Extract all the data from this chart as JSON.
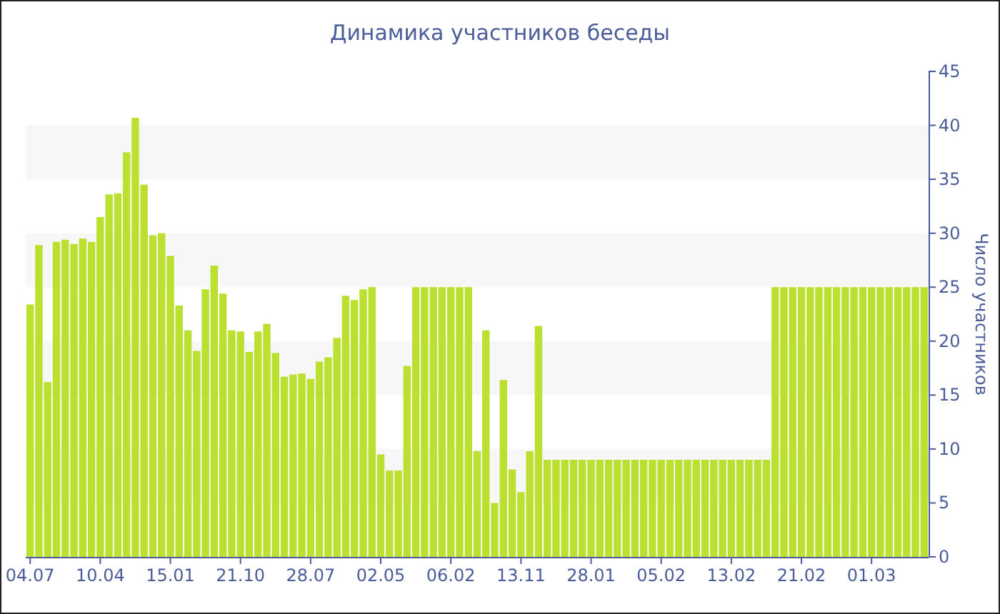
{
  "chart_data": {
    "type": "bar",
    "title": "Динамика участников беседы",
    "ylabel": "Число участников",
    "categories": [
      "04.07",
      null,
      null,
      null,
      null,
      null,
      null,
      null,
      "10.04",
      null,
      null,
      null,
      null,
      null,
      null,
      null,
      "15.01",
      null,
      null,
      null,
      null,
      null,
      null,
      null,
      "21.10",
      null,
      null,
      null,
      null,
      null,
      null,
      null,
      "28.07",
      null,
      null,
      null,
      null,
      null,
      null,
      null,
      "02.05",
      null,
      null,
      null,
      null,
      null,
      null,
      null,
      "06.02",
      null,
      null,
      null,
      null,
      null,
      null,
      null,
      "13.11",
      null,
      null,
      null,
      null,
      null,
      null,
      null,
      "28.01",
      null,
      null,
      null,
      null,
      null,
      null,
      null,
      "05.02",
      null,
      null,
      null,
      null,
      null,
      null,
      null,
      "13.02",
      null,
      null,
      null,
      null,
      null,
      null,
      null,
      "21.02",
      null,
      null,
      null,
      null,
      null,
      null,
      null,
      "01.03",
      null,
      null,
      null,
      null,
      null,
      null
    ],
    "values": [
      23.4,
      28.9,
      16.2,
      29.2,
      29.4,
      29.0,
      29.5,
      29.2,
      31.5,
      33.6,
      33.7,
      37.5,
      40.7,
      34.5,
      29.8,
      30.0,
      27.9,
      23.3,
      21.0,
      19.1,
      24.8,
      27.0,
      24.4,
      21.0,
      20.9,
      19.0,
      20.9,
      21.6,
      18.9,
      16.7,
      16.9,
      17.0,
      16.5,
      18.1,
      18.5,
      20.3,
      24.2,
      23.8,
      24.8,
      25,
      9.5,
      8,
      8,
      17.7,
      25,
      25,
      25,
      25,
      25,
      25,
      25,
      9.8,
      21,
      5,
      16.4,
      8.1,
      6,
      9.8,
      21.4,
      9,
      9,
      9,
      9,
      9,
      9,
      9,
      9,
      9,
      9,
      9,
      9,
      9,
      9,
      9,
      9,
      9,
      9,
      9,
      9,
      9,
      9,
      9,
      9,
      9,
      9,
      25,
      25,
      25,
      25,
      25,
      25,
      25,
      25,
      25,
      25,
      25,
      25,
      25,
      25,
      25,
      25,
      25,
      25
    ],
    "color": "#bbe02f",
    "ylim": [
      0,
      45
    ],
    "yticks": [
      0,
      5,
      10,
      15,
      20,
      25,
      30,
      35,
      40,
      45
    ],
    "bands": [
      {
        "axis": "y",
        "from": 5,
        "to": 10,
        "color": "#f7f7f7"
      },
      {
        "axis": "y",
        "from": 15,
        "to": 20,
        "color": "#f7f7f7"
      },
      {
        "axis": "y",
        "from": 25,
        "to": 30,
        "color": "#f7f7f7"
      },
      {
        "axis": "y",
        "from": 35,
        "to": 40,
        "color": "#f7f7f7"
      }
    ]
  }
}
